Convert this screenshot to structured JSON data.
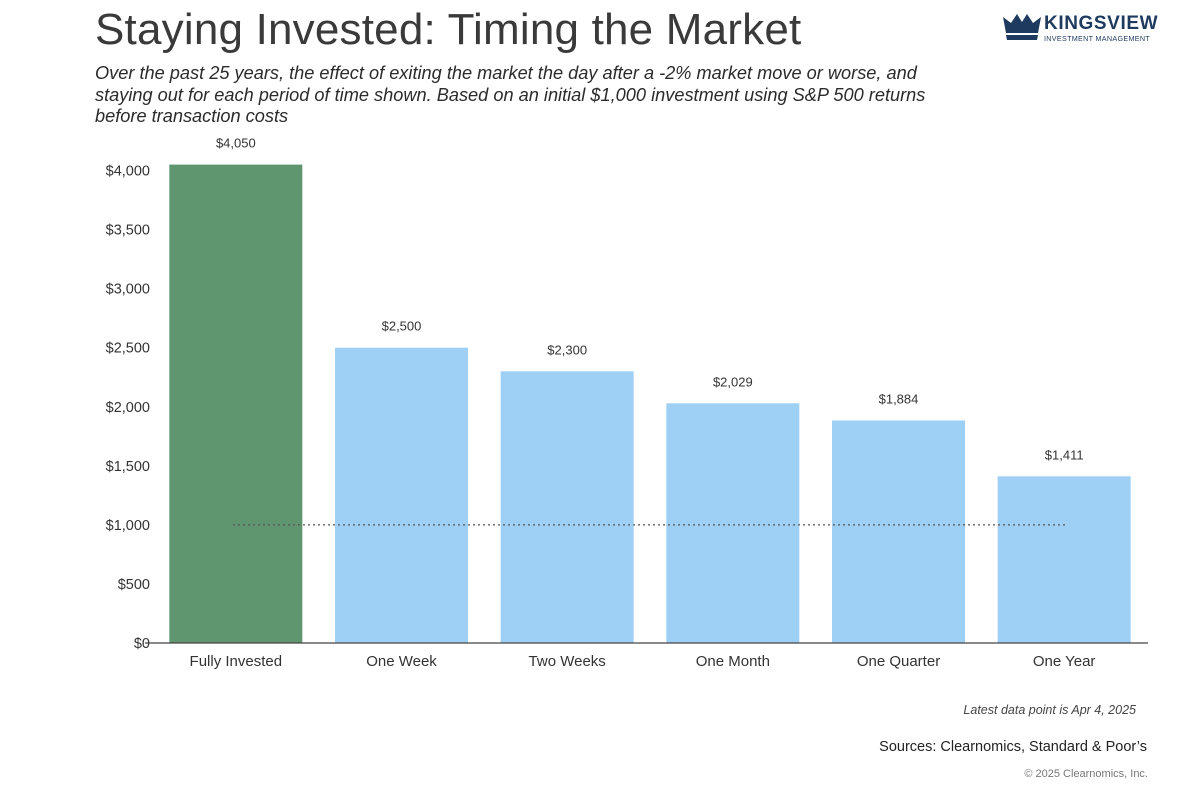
{
  "header": {
    "title": "Staying Invested: Timing the Market",
    "subtitle": "Over the past 25 years, the effect of exiting the market the day after a -2% market move or worse, and staying out for each period of time shown. Based on an initial $1,000 investment using S&P 500 returns before transaction costs"
  },
  "logo": {
    "name": "KINGSVIEW",
    "tagline": "INVESTMENT MANAGEMENT",
    "color": "#1f3a5f"
  },
  "chart_data": {
    "type": "bar",
    "categories": [
      "Fully Invested",
      "One Week",
      "Two Weeks",
      "One Month",
      "One Quarter",
      "One Year"
    ],
    "values": [
      4050,
      2500,
      2300,
      2029,
      1884,
      1411
    ],
    "data_labels": [
      "$4,050",
      "$2,500",
      "$2,300",
      "$2,029",
      "$1,884",
      "$1,411"
    ],
    "bar_colors": [
      "#5f9670",
      "#9ecff4",
      "#9ecff4",
      "#9ecff4",
      "#9ecff4",
      "#9ecff4"
    ],
    "yticks": [
      0,
      500,
      1000,
      1500,
      2000,
      2500,
      3000,
      3500,
      4000
    ],
    "ytick_labels": [
      "$0",
      "$500",
      "$1,000",
      "$1,500",
      "$2,000",
      "$2,500",
      "$3,000",
      "$3,500",
      "$4,000"
    ],
    "ylim": [
      0,
      4050
    ],
    "reference_line": {
      "value": 1000,
      "style": "dotted"
    },
    "grid": false,
    "legend": "none"
  },
  "footer": {
    "note": "Latest data point is Apr 4, 2025",
    "sources": "Sources: Clearnomics, Standard & Poor’s",
    "copyright": "© 2025 Clearnomics, Inc."
  }
}
